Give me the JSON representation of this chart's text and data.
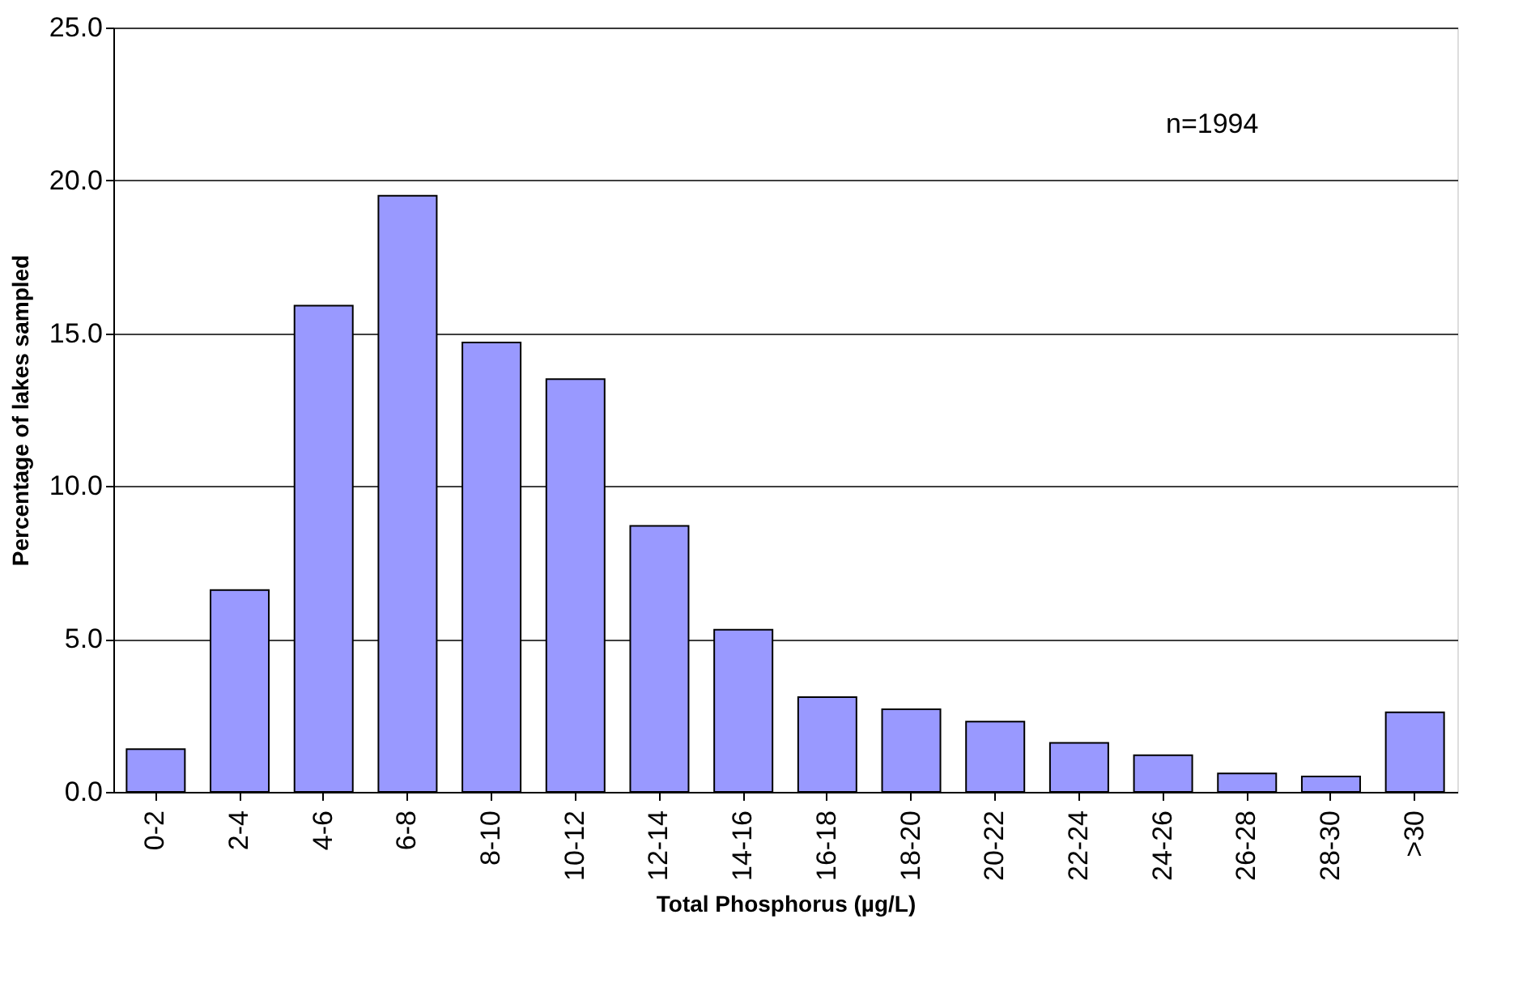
{
  "chart_data": {
    "type": "bar",
    "categories": [
      "0-2",
      "2-4",
      "4-6",
      "6-8",
      "8-10",
      "10-12",
      "12-14",
      "14-16",
      "16-18",
      "18-20",
      "20-22",
      "22-24",
      "24-26",
      "26-28",
      "28-30",
      ">30"
    ],
    "values": [
      1.4,
      6.6,
      15.9,
      19.5,
      14.7,
      13.5,
      8.7,
      5.3,
      3.1,
      2.7,
      2.3,
      1.6,
      1.2,
      0.6,
      0.5,
      2.6
    ],
    "color": "#9999ff",
    "xlabel": "Total Phosphorus (µg/L)",
    "ylabel": "Percentage of lakes sampled",
    "ylim": [
      0,
      25
    ],
    "yticks": [
      {
        "value": 0,
        "label": "0.0"
      },
      {
        "value": 5,
        "label": "5.0"
      },
      {
        "value": 10,
        "label": "10.0"
      },
      {
        "value": 15,
        "label": "15.0"
      },
      {
        "value": 20,
        "label": "20.0"
      },
      {
        "value": 25,
        "label": "25.0"
      }
    ],
    "grid": "y",
    "annotations": [
      "n=1994"
    ]
  }
}
